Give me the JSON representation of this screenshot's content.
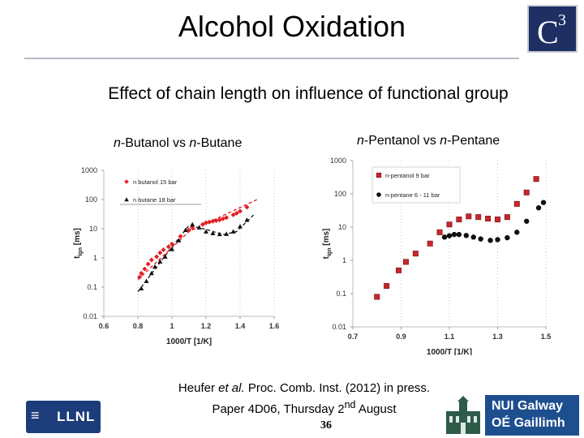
{
  "header": {
    "title": "Alcohol Oxidation",
    "logo_text": "C",
    "logo_sup": "3"
  },
  "subtitle": "Effect of chain length on influence of functional group",
  "captions": {
    "left": {
      "italic1": "n",
      "text1": "-Butanol vs ",
      "italic2": "n",
      "text2": "-Butane"
    },
    "right": {
      "italic1": "n",
      "text1": "-Pentanol vs ",
      "italic2": "n",
      "text2": "-Pentane"
    }
  },
  "chart_data": [
    {
      "type": "scatter",
      "title": "n-Butanol vs n-Butane",
      "xlabel": "1000/T [1/K]",
      "ylabel": "tign [ms]",
      "ylabel_main": "t",
      "ylabel_sub": "ign",
      "ylabel_unit": " [ms]",
      "xlim": [
        0.6,
        1.6
      ],
      "ylim": [
        0.01,
        1000
      ],
      "yscale": "log",
      "x_ticks": [
        "0.6",
        "0.8",
        "1",
        "1.2",
        "1.4",
        "1.6"
      ],
      "x_tick_values": [
        0.6,
        0.8,
        1.0,
        1.2,
        1.4,
        1.6
      ],
      "y_ticks": [
        "0.01",
        "0.1",
        "1",
        "10",
        "100",
        "1000"
      ],
      "y_tick_values": [
        0.01,
        0.1,
        1,
        10,
        100,
        1000
      ],
      "legend_position": "top-left",
      "series": [
        {
          "name": "n butanol 15 bar",
          "color": "#e41f26",
          "marker": "diamond",
          "x": [
            0.81,
            0.82,
            0.84,
            0.86,
            0.88,
            0.91,
            0.93,
            0.95,
            0.98,
            1.0,
            1.05,
            1.1,
            1.12,
            1.18,
            1.2,
            1.22,
            1.24,
            1.26,
            1.28,
            1.3,
            1.32,
            1.36,
            1.38,
            1.4,
            1.44
          ],
          "y": [
            0.22,
            0.3,
            0.42,
            0.62,
            0.85,
            1.1,
            1.5,
            1.9,
            2.4,
            3.0,
            5.5,
            9.0,
            11,
            14,
            16,
            17,
            18,
            19,
            20,
            22,
            24,
            30,
            34,
            40,
            55
          ]
        },
        {
          "name": "n butane 18 bar",
          "color": "#111111",
          "marker": "triangle",
          "x": [
            0.82,
            0.85,
            0.88,
            0.9,
            0.93,
            0.96,
            1.0,
            1.04,
            1.08,
            1.12,
            1.16,
            1.2,
            1.24,
            1.28,
            1.32,
            1.36,
            1.4,
            1.44
          ],
          "y": [
            0.09,
            0.16,
            0.3,
            0.5,
            0.75,
            1.1,
            2.0,
            4.0,
            9.0,
            14,
            11,
            8,
            7,
            6.5,
            6.6,
            8,
            12,
            20
          ]
        }
      ],
      "fits": [
        {
          "name": "n butanol 15 bar fit",
          "color": "#e41f26",
          "x": [
            0.8,
            1.1,
            1.5
          ],
          "y": [
            0.18,
            8,
            100
          ]
        },
        {
          "name": "n butane 18 bar fit",
          "color": "#222222",
          "x": [
            0.8,
            0.95,
            1.1,
            1.2,
            1.3,
            1.38,
            1.48
          ],
          "y": [
            0.07,
            1,
            13,
            9.5,
            6.3,
            8,
            30
          ]
        }
      ]
    },
    {
      "type": "scatter",
      "title": "n-Pentanol vs n-Pentane",
      "xlabel": "1000/T [1/K]",
      "ylabel": "tign [ms]",
      "ylabel_main": "t",
      "ylabel_sub": "ign",
      "ylabel_unit": " [ms]",
      "xlim": [
        0.7,
        1.5
      ],
      "ylim": [
        0.01,
        1000
      ],
      "yscale": "log",
      "x_ticks": [
        "0.7",
        "0.9",
        "1.1",
        "1.3",
        "1.5"
      ],
      "x_tick_values": [
        0.7,
        0.9,
        1.1,
        1.3,
        1.5
      ],
      "y_ticks": [
        "0.01",
        "0.1",
        "1",
        "10",
        "100",
        "1000"
      ],
      "y_tick_values": [
        0.01,
        0.1,
        1,
        10,
        100,
        1000
      ],
      "legend_position": "top-right",
      "series": [
        {
          "name": "n-pentanol 9 bar",
          "color": "#c8262e",
          "marker": "square",
          "x": [
            0.8,
            0.84,
            0.89,
            0.92,
            0.96,
            1.02,
            1.06,
            1.1,
            1.14,
            1.18,
            1.22,
            1.26,
            1.3,
            1.34,
            1.38,
            1.42,
            1.46
          ],
          "y": [
            0.08,
            0.17,
            0.5,
            0.9,
            1.6,
            3.2,
            7,
            12,
            17,
            21,
            20,
            18,
            17,
            20,
            50,
            110,
            280
          ]
        },
        {
          "name": "n-pentane 6 - 11 bar",
          "color": "#111111",
          "marker": "circle",
          "x": [
            1.08,
            1.1,
            1.12,
            1.14,
            1.17,
            1.2,
            1.23,
            1.27,
            1.3,
            1.34,
            1.38,
            1.42,
            1.47,
            1.49
          ],
          "y": [
            5.0,
            5.5,
            6.0,
            6.0,
            5.6,
            5.0,
            4.4,
            4.0,
            4.2,
            4.8,
            7.0,
            15,
            38,
            55
          ]
        }
      ],
      "fits": []
    }
  ],
  "reference": {
    "line1_pre": "Heufer ",
    "line1_em": "et al.",
    "line1_post": " Proc. Comb. Inst. (2012) in press.",
    "line2_pre": "Paper 4D06, Thursday 2",
    "line2_sup": "nd",
    "line2_post": " August"
  },
  "footer": {
    "page_number": "36",
    "llnl_text": "LLNL",
    "nuig_line1": "NUI Galway",
    "nuig_line2": "OÉ Gaillimh"
  }
}
